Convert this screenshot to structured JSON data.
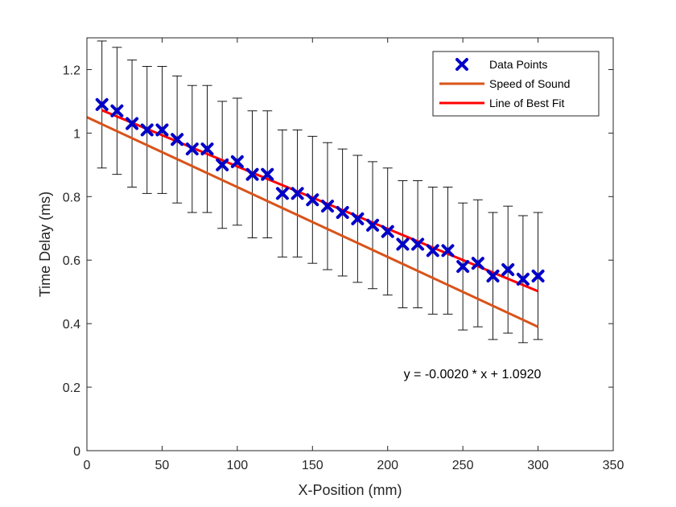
{
  "chart_data": {
    "type": "scatter",
    "xlabel": "X-Position (mm)",
    "ylabel": "Time Delay (ms)",
    "xlim": [
      0,
      350
    ],
    "ylim": [
      0,
      1.3
    ],
    "xticks": [
      0,
      50,
      100,
      150,
      200,
      250,
      300,
      350
    ],
    "yticks": [
      0,
      0.2,
      0.4,
      0.6,
      0.8,
      1,
      1.2
    ],
    "grid": false,
    "legend_position": "top-right",
    "series": [
      {
        "name": "Data Points",
        "kind": "scatter",
        "marker": "x",
        "color": "#0000c8",
        "x": [
          10,
          20,
          30,
          40,
          50,
          60,
          70,
          80,
          90,
          100,
          110,
          120,
          130,
          140,
          150,
          160,
          170,
          180,
          190,
          200,
          210,
          220,
          230,
          240,
          250,
          260,
          270,
          280,
          290,
          300
        ],
        "y": [
          1.09,
          1.07,
          1.03,
          1.01,
          1.01,
          0.98,
          0.95,
          0.95,
          0.9,
          0.91,
          0.87,
          0.87,
          0.81,
          0.81,
          0.79,
          0.77,
          0.75,
          0.73,
          0.71,
          0.69,
          0.65,
          0.65,
          0.63,
          0.63,
          0.58,
          0.59,
          0.55,
          0.57,
          0.54,
          0.55
        ],
        "error": 0.2
      },
      {
        "name": "Speed of Sound",
        "kind": "line",
        "color": "#d95319",
        "x": [
          0,
          300
        ],
        "y": [
          1.05,
          0.39
        ]
      },
      {
        "name": "Line of Best Fit",
        "kind": "line",
        "color": "#ff0000",
        "x": [
          10,
          300
        ],
        "y": [
          1.072,
          0.502
        ]
      }
    ],
    "annotation": {
      "text": "y = -0.0020 * x + 1.0920"
    }
  }
}
